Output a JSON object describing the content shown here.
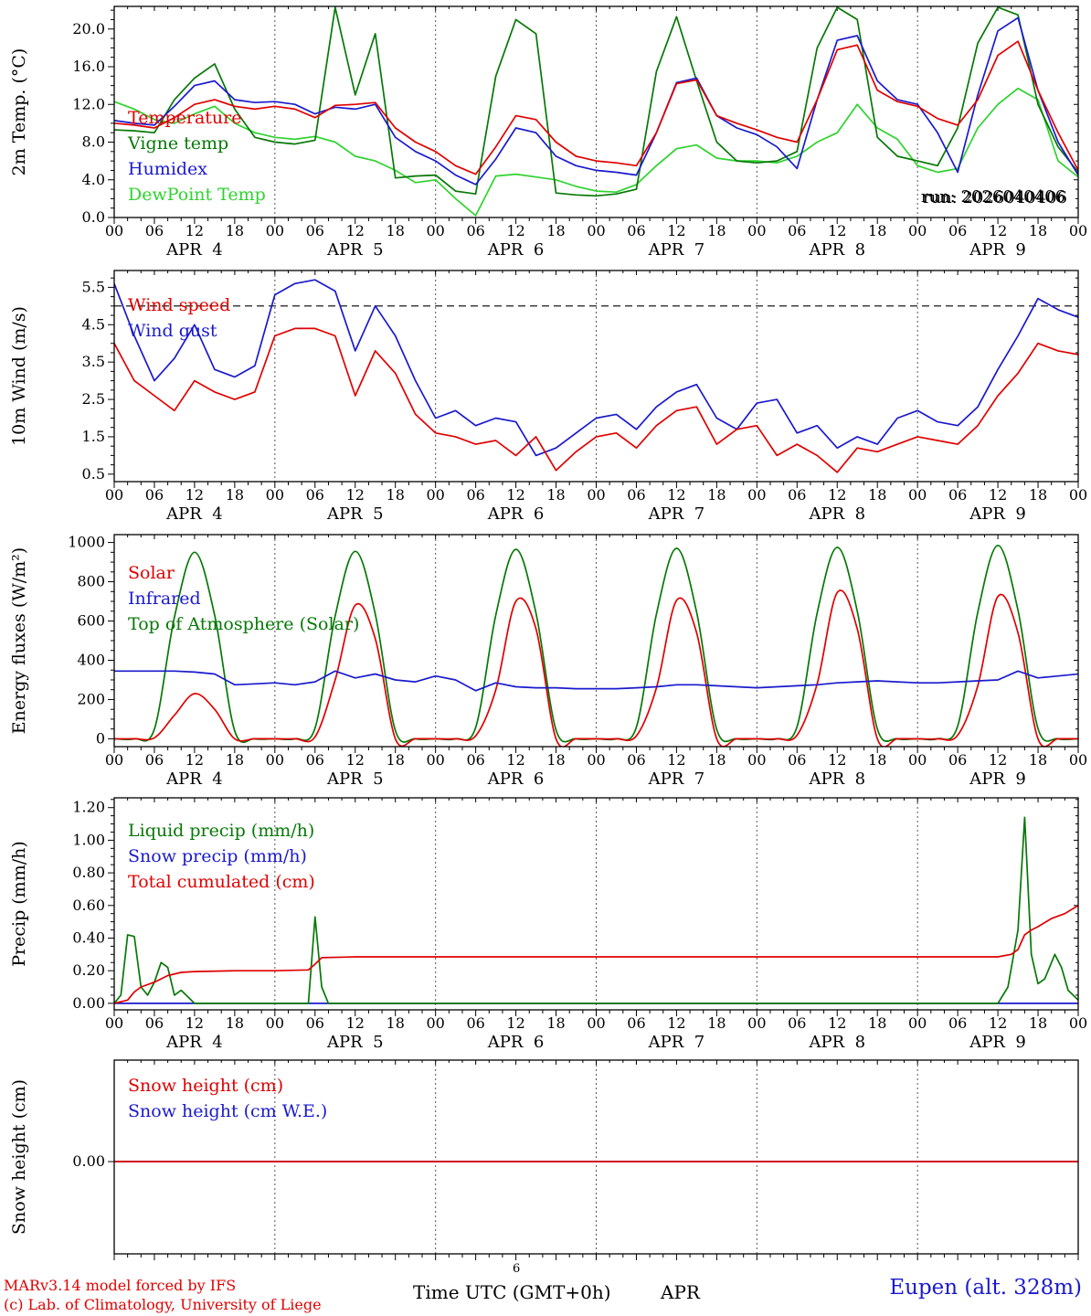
{
  "footer": {
    "credit_line1": "MARv3.14 model forced by IFS",
    "credit_line2": "(c) Lab. of Climatology, University of Liege",
    "axis_title": "Time UTC (GMT+0h)",
    "axis_title_suffix": "APR",
    "axis_title_super": "6",
    "station": "Eupen (alt. 328m)"
  },
  "chart_data": {
    "type": "line",
    "run_label": "run: 2026040406",
    "colors": {
      "red": "#e00000",
      "blue": "#1a1acd",
      "dark_green": "#067806",
      "light_green": "#2ed32e",
      "black": "#000000"
    },
    "x_axis": {
      "unit": "hours from APR 4 00UTC",
      "range": [
        0,
        144
      ],
      "major_tick_step": 6,
      "minor_tick_step": 2,
      "day_labels": [
        "APR  4",
        "APR  5",
        "APR  6",
        "APR  7",
        "APR  8",
        "APR  9"
      ],
      "day_boundaries": [
        24,
        48,
        72,
        96,
        120
      ]
    },
    "panels": [
      {
        "id": "temperature",
        "ylabel": "2m Temp. (°C)",
        "ylim": [
          0,
          22.4
        ],
        "yticks": [
          0,
          4,
          8,
          12,
          16,
          20
        ],
        "ytick_labels": [
          "0.0",
          "4.0",
          "8.0",
          "12.0",
          "16.0",
          "20.0"
        ],
        "minor_step": 1,
        "show_x_labels": true,
        "legend": [
          {
            "label": "Temperature",
            "color": "#e00000",
            "dy": 128
          },
          {
            "label": "Vigne temp",
            "color": "#067806",
            "dy": 156
          },
          {
            "label": "Humidex",
            "color": "#1a1acd",
            "dy": 184
          },
          {
            "label": "DewPoint Temp",
            "color": "#2ed32e",
            "dy": 212
          }
        ],
        "annotations": [
          {
            "text": "run: 2026040406",
            "color": "#000000",
            "align": "right",
            "dy": 214
          }
        ],
        "series": [
          {
            "name": "dewpoint-temp",
            "color": "#2ed32e",
            "smooth": false,
            "y": [
              12.3,
              11.5,
              10.4,
              10.0,
              11.0,
              11.8,
              10.0,
              9.0,
              8.5,
              8.3,
              8.6,
              8.0,
              6.5,
              6.0,
              5.0,
              3.7,
              4.0,
              2.0,
              0.2,
              4.4,
              4.6,
              4.3,
              4.0,
              3.3,
              2.8,
              2.7,
              3.5,
              5.5,
              7.3,
              7.7,
              6.3,
              6.0,
              6.0,
              5.8,
              6.5,
              8.0,
              9.0,
              12.0,
              9.5,
              8.3,
              5.5,
              4.8,
              5.2,
              9.5,
              12.0,
              13.7,
              12.5,
              6.0,
              4.3
            ]
          },
          {
            "name": "vigne-temp",
            "color": "#067806",
            "smooth": false,
            "y": [
              9.3,
              9.2,
              9.0,
              12.5,
              14.8,
              16.3,
              11.5,
              8.5,
              8.0,
              7.8,
              8.2,
              22.3,
              13.0,
              19.5,
              4.2,
              4.4,
              4.5,
              2.8,
              2.5,
              15.0,
              21.0,
              19.5,
              2.6,
              2.4,
              2.3,
              2.5,
              3.0,
              15.5,
              21.3,
              14.5,
              8.0,
              6.0,
              5.8,
              6.0,
              7.0,
              18.0,
              22.3,
              21.0,
              8.5,
              6.5,
              6.0,
              5.5,
              9.5,
              18.5,
              22.3,
              21.5,
              12.0,
              7.5,
              4.8
            ]
          },
          {
            "name": "humidex",
            "color": "#1a1acd",
            "smooth": false,
            "y": [
              10.3,
              10.0,
              9.8,
              11.8,
              14.0,
              14.5,
              12.5,
              12.2,
              12.3,
              12.0,
              11.0,
              11.7,
              11.5,
              12.0,
              8.5,
              7.0,
              6.0,
              4.5,
              3.5,
              6.2,
              9.5,
              9.0,
              6.5,
              5.5,
              5.0,
              4.8,
              4.5,
              9.0,
              14.3,
              14.8,
              10.8,
              9.5,
              8.8,
              7.5,
              5.2,
              12.5,
              18.8,
              19.3,
              14.5,
              12.5,
              12.0,
              9.0,
              4.8,
              13.0,
              19.8,
              21.2,
              13.5,
              8.0,
              4.5
            ]
          },
          {
            "name": "temperature",
            "color": "#e00000",
            "smooth": false,
            "y": [
              10.0,
              9.8,
              9.5,
              10.6,
              12.0,
              12.5,
              11.8,
              11.5,
              11.8,
              11.5,
              10.6,
              11.9,
              12.0,
              12.2,
              9.5,
              8.0,
              7.0,
              5.5,
              4.6,
              7.5,
              10.8,
              10.4,
              8.0,
              6.5,
              6.0,
              5.8,
              5.5,
              9.0,
              14.2,
              14.6,
              10.8,
              10.0,
              9.3,
              8.5,
              8.0,
              12.5,
              17.8,
              18.3,
              13.5,
              12.3,
              11.8,
              10.5,
              9.8,
              12.5,
              17.2,
              18.7,
              13.5,
              9.0,
              5.0
            ]
          }
        ]
      },
      {
        "id": "wind",
        "ylabel": "10m Wind (m/s)",
        "ylim": [
          0.3,
          5.95
        ],
        "yticks": [
          0.5,
          1.5,
          2.5,
          3.5,
          4.5,
          5.5
        ],
        "ytick_labels": [
          "0.5",
          "1.5",
          "2.5",
          "3.5",
          "4.5",
          "5.5"
        ],
        "minor_step": 0.25,
        "show_x_labels": true,
        "hlines": [
          5.0
        ],
        "legend": [
          {
            "label": "Wind speed",
            "color": "#e00000",
            "dy": 44
          },
          {
            "label": "Wind gust",
            "color": "#1a1acd",
            "dy": 72
          }
        ],
        "series": [
          {
            "name": "wind-gust",
            "color": "#1a1acd",
            "smooth": false,
            "y": [
              5.6,
              4.2,
              3.0,
              3.6,
              4.5,
              3.3,
              3.1,
              3.4,
              5.3,
              5.6,
              5.7,
              5.4,
              3.8,
              5.0,
              4.2,
              3.0,
              2.0,
              2.2,
              1.8,
              2.0,
              1.9,
              1.0,
              1.2,
              1.6,
              2.0,
              2.1,
              1.7,
              2.3,
              2.7,
              2.9,
              2.0,
              1.7,
              2.4,
              2.5,
              1.6,
              1.8,
              1.2,
              1.5,
              1.3,
              2.0,
              2.2,
              1.9,
              1.8,
              2.3,
              3.3,
              4.2,
              5.2,
              4.9,
              4.7
            ]
          },
          {
            "name": "wind-speed",
            "color": "#e00000",
            "smooth": false,
            "y": [
              4.0,
              3.0,
              2.6,
              2.2,
              3.0,
              2.7,
              2.5,
              2.7,
              4.2,
              4.4,
              4.4,
              4.2,
              2.6,
              3.8,
              3.2,
              2.1,
              1.6,
              1.5,
              1.3,
              1.4,
              1.0,
              1.5,
              0.6,
              1.1,
              1.5,
              1.6,
              1.2,
              1.8,
              2.2,
              2.3,
              1.3,
              1.7,
              1.8,
              1.0,
              1.3,
              1.0,
              0.55,
              1.2,
              1.1,
              1.3,
              1.5,
              1.4,
              1.3,
              1.8,
              2.6,
              3.2,
              4.0,
              3.8,
              3.7
            ]
          }
        ]
      },
      {
        "id": "energy-fluxes",
        "ylabel": "Energy fluxes (W/m²)",
        "ylim": [
          -40,
          1040
        ],
        "yticks": [
          0,
          200,
          400,
          600,
          800,
          1000
        ],
        "ytick_labels": [
          "0",
          "200",
          "400",
          "600",
          "800",
          "1000"
        ],
        "minor_step": 50,
        "show_x_labels": true,
        "legend": [
          {
            "label": "Solar",
            "color": "#e00000",
            "dy": 48
          },
          {
            "label": "Infrared",
            "color": "#1a1acd",
            "dy": 76
          },
          {
            "label": "Top of Atmosphere (Solar)",
            "color": "#067806",
            "dy": 104
          }
        ],
        "series": [
          {
            "name": "top-of-atmosphere-solar",
            "color": "#067806",
            "smooth": true,
            "y": [
              0,
              0,
              50,
              620,
              950,
              630,
              40,
              0,
              0,
              0,
              55,
              625,
              955,
              635,
              42,
              0,
              0,
              0,
              58,
              630,
              965,
              640,
              45,
              0,
              0,
              0,
              60,
              635,
              970,
              645,
              48,
              0,
              0,
              0,
              62,
              640,
              975,
              650,
              50,
              0,
              0,
              0,
              65,
              645,
              985,
              655,
              52,
              0,
              0
            ]
          },
          {
            "name": "solar",
            "color": "#e00000",
            "smooth": true,
            "y": [
              0,
              0,
              5,
              120,
              230,
              150,
              0,
              0,
              0,
              0,
              10,
              300,
              680,
              510,
              0,
              0,
              0,
              0,
              15,
              250,
              700,
              560,
              0,
              0,
              0,
              0,
              15,
              260,
              705,
              540,
              0,
              0,
              0,
              0,
              18,
              280,
              745,
              560,
              0,
              0,
              0,
              0,
              18,
              270,
              725,
              540,
              0,
              0,
              0
            ]
          },
          {
            "name": "infrared",
            "color": "#1a1acd",
            "smooth": false,
            "y": [
              345,
              345,
              345,
              345,
              340,
              330,
              275,
              280,
              285,
              275,
              290,
              345,
              310,
              330,
              300,
              290,
              320,
              300,
              245,
              285,
              265,
              260,
              260,
              255,
              255,
              255,
              260,
              265,
              275,
              275,
              270,
              265,
              260,
              265,
              270,
              275,
              285,
              290,
              295,
              290,
              285,
              285,
              290,
              295,
              300,
              345,
              310,
              320,
              330
            ]
          }
        ]
      },
      {
        "id": "precip",
        "ylabel": "Precip (mm/h)",
        "ylim": [
          -0.04,
          1.26
        ],
        "yticks": [
          0,
          0.2,
          0.4,
          0.6,
          0.8,
          1.0,
          1.2
        ],
        "ytick_labels": [
          "0.00",
          "0.20",
          "0.40",
          "0.60",
          "0.80",
          "1.00",
          "1.20"
        ],
        "minor_step": 0.05,
        "show_x_labels": true,
        "legend": [
          {
            "label": "Liquid precip (mm/h)",
            "color": "#067806",
            "dy": 42
          },
          {
            "label": "Snow precip (mm/h)",
            "color": "#1a1acd",
            "dy": 70
          },
          {
            "label": "Total cumulated (cm)",
            "color": "#e00000",
            "dy": 98
          }
        ],
        "series": [
          {
            "name": "snow-precip",
            "color": "#1a1acd",
            "smooth": false,
            "x": [
              0,
              144
            ],
            "y": [
              0,
              0
            ]
          },
          {
            "name": "liquid-precip",
            "color": "#067806",
            "smooth": false,
            "x": [
              0,
              1,
              2,
              3,
              4,
              5,
              6,
              7,
              8,
              9,
              10,
              12,
              24,
              29,
              30,
              31,
              32,
              120,
              132,
              133.5,
              135,
              136,
              137,
              138,
              139,
              140.5,
              141.5,
              142.5,
              144
            ],
            "y": [
              0,
              0.05,
              0.42,
              0.41,
              0.1,
              0.05,
              0.13,
              0.25,
              0.22,
              0.05,
              0.08,
              0,
              0,
              0,
              0.53,
              0.1,
              0,
              0,
              0,
              0.1,
              0.45,
              1.14,
              0.3,
              0.12,
              0.15,
              0.3,
              0.22,
              0.08,
              0.02
            ]
          },
          {
            "name": "total-cumulated",
            "color": "#e00000",
            "smooth": false,
            "x": [
              0,
              2,
              3,
              4,
              6,
              8,
              10,
              12,
              18,
              24,
              29,
              30,
              31,
              36,
              48,
              72,
              96,
              120,
              132,
              134,
              135,
              136,
              137,
              138,
              140,
              142,
              144
            ],
            "y": [
              0,
              0.02,
              0.07,
              0.1,
              0.13,
              0.17,
              0.19,
              0.195,
              0.2,
              0.2,
              0.205,
              0.24,
              0.28,
              0.285,
              0.285,
              0.285,
              0.285,
              0.285,
              0.285,
              0.3,
              0.33,
              0.42,
              0.45,
              0.47,
              0.52,
              0.55,
              0.6
            ]
          }
        ]
      },
      {
        "id": "snow-height",
        "ylabel": "Snow height (cm)",
        "ylim": [
          -0.5,
          0.55
        ],
        "yticks": [
          0
        ],
        "ytick_labels": [
          "0.00"
        ],
        "minor_step": null,
        "show_x_labels": false,
        "legend": [
          {
            "label": "Snow height (cm)",
            "color": "#e00000",
            "dy": 34
          },
          {
            "label": "Snow height (cm W.E.)",
            "color": "#1a1acd",
            "dy": 62
          }
        ],
        "series": [
          {
            "name": "snow-height-we",
            "color": "#1a1acd",
            "smooth": false,
            "x": [
              0,
              144
            ],
            "y": [
              0,
              0
            ]
          },
          {
            "name": "snow-height",
            "color": "#e00000",
            "smooth": false,
            "x": [
              0,
              144
            ],
            "y": [
              0,
              0
            ]
          }
        ]
      }
    ]
  }
}
